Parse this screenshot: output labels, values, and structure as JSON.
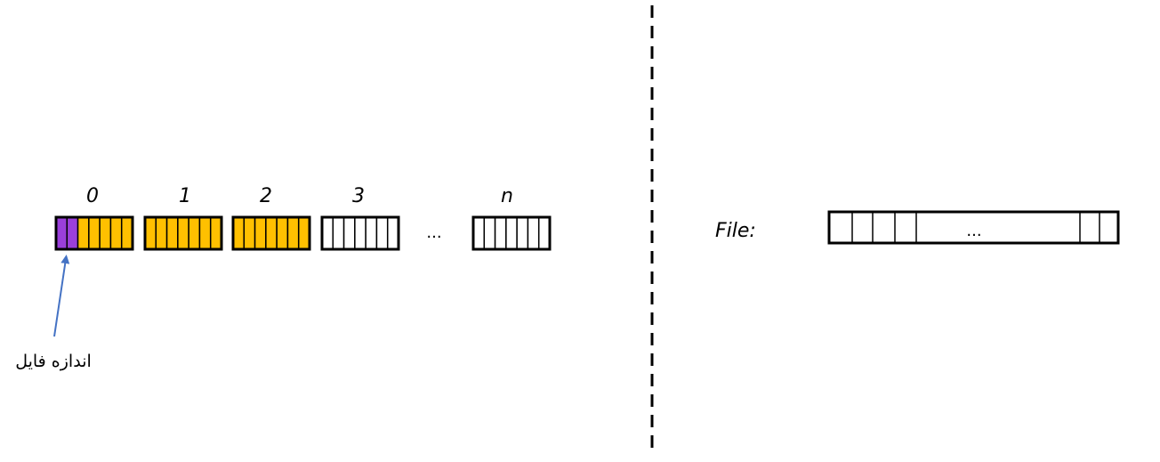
{
  "blocks": [
    {
      "label": "0",
      "cells": [
        "size",
        "size",
        "filled",
        "filled",
        "filled",
        "filled",
        "filled"
      ]
    },
    {
      "label": "1",
      "cells": [
        "filled",
        "filled",
        "filled",
        "filled",
        "filled",
        "filled",
        "filled"
      ]
    },
    {
      "label": "2",
      "cells": [
        "filled",
        "filled",
        "filled",
        "filled",
        "filled",
        "filled",
        "filled"
      ]
    },
    {
      "label": "3",
      "cells": [
        "empty",
        "empty",
        "empty",
        "empty",
        "empty",
        "empty",
        "empty"
      ]
    },
    {
      "label": "n",
      "cells": [
        "empty",
        "empty",
        "empty",
        "empty",
        "empty",
        "empty",
        "empty"
      ]
    }
  ],
  "ellipsis": "...",
  "file_size_label": "اندازه فایل",
  "file_label": "File:",
  "file_ellipsis": "...",
  "colors": {
    "size_cell": "#9b3fdb",
    "filled_cell": "#ffc000",
    "empty_cell": "#ffffff",
    "outline": "#000000",
    "arrow": "#4472c4"
  }
}
